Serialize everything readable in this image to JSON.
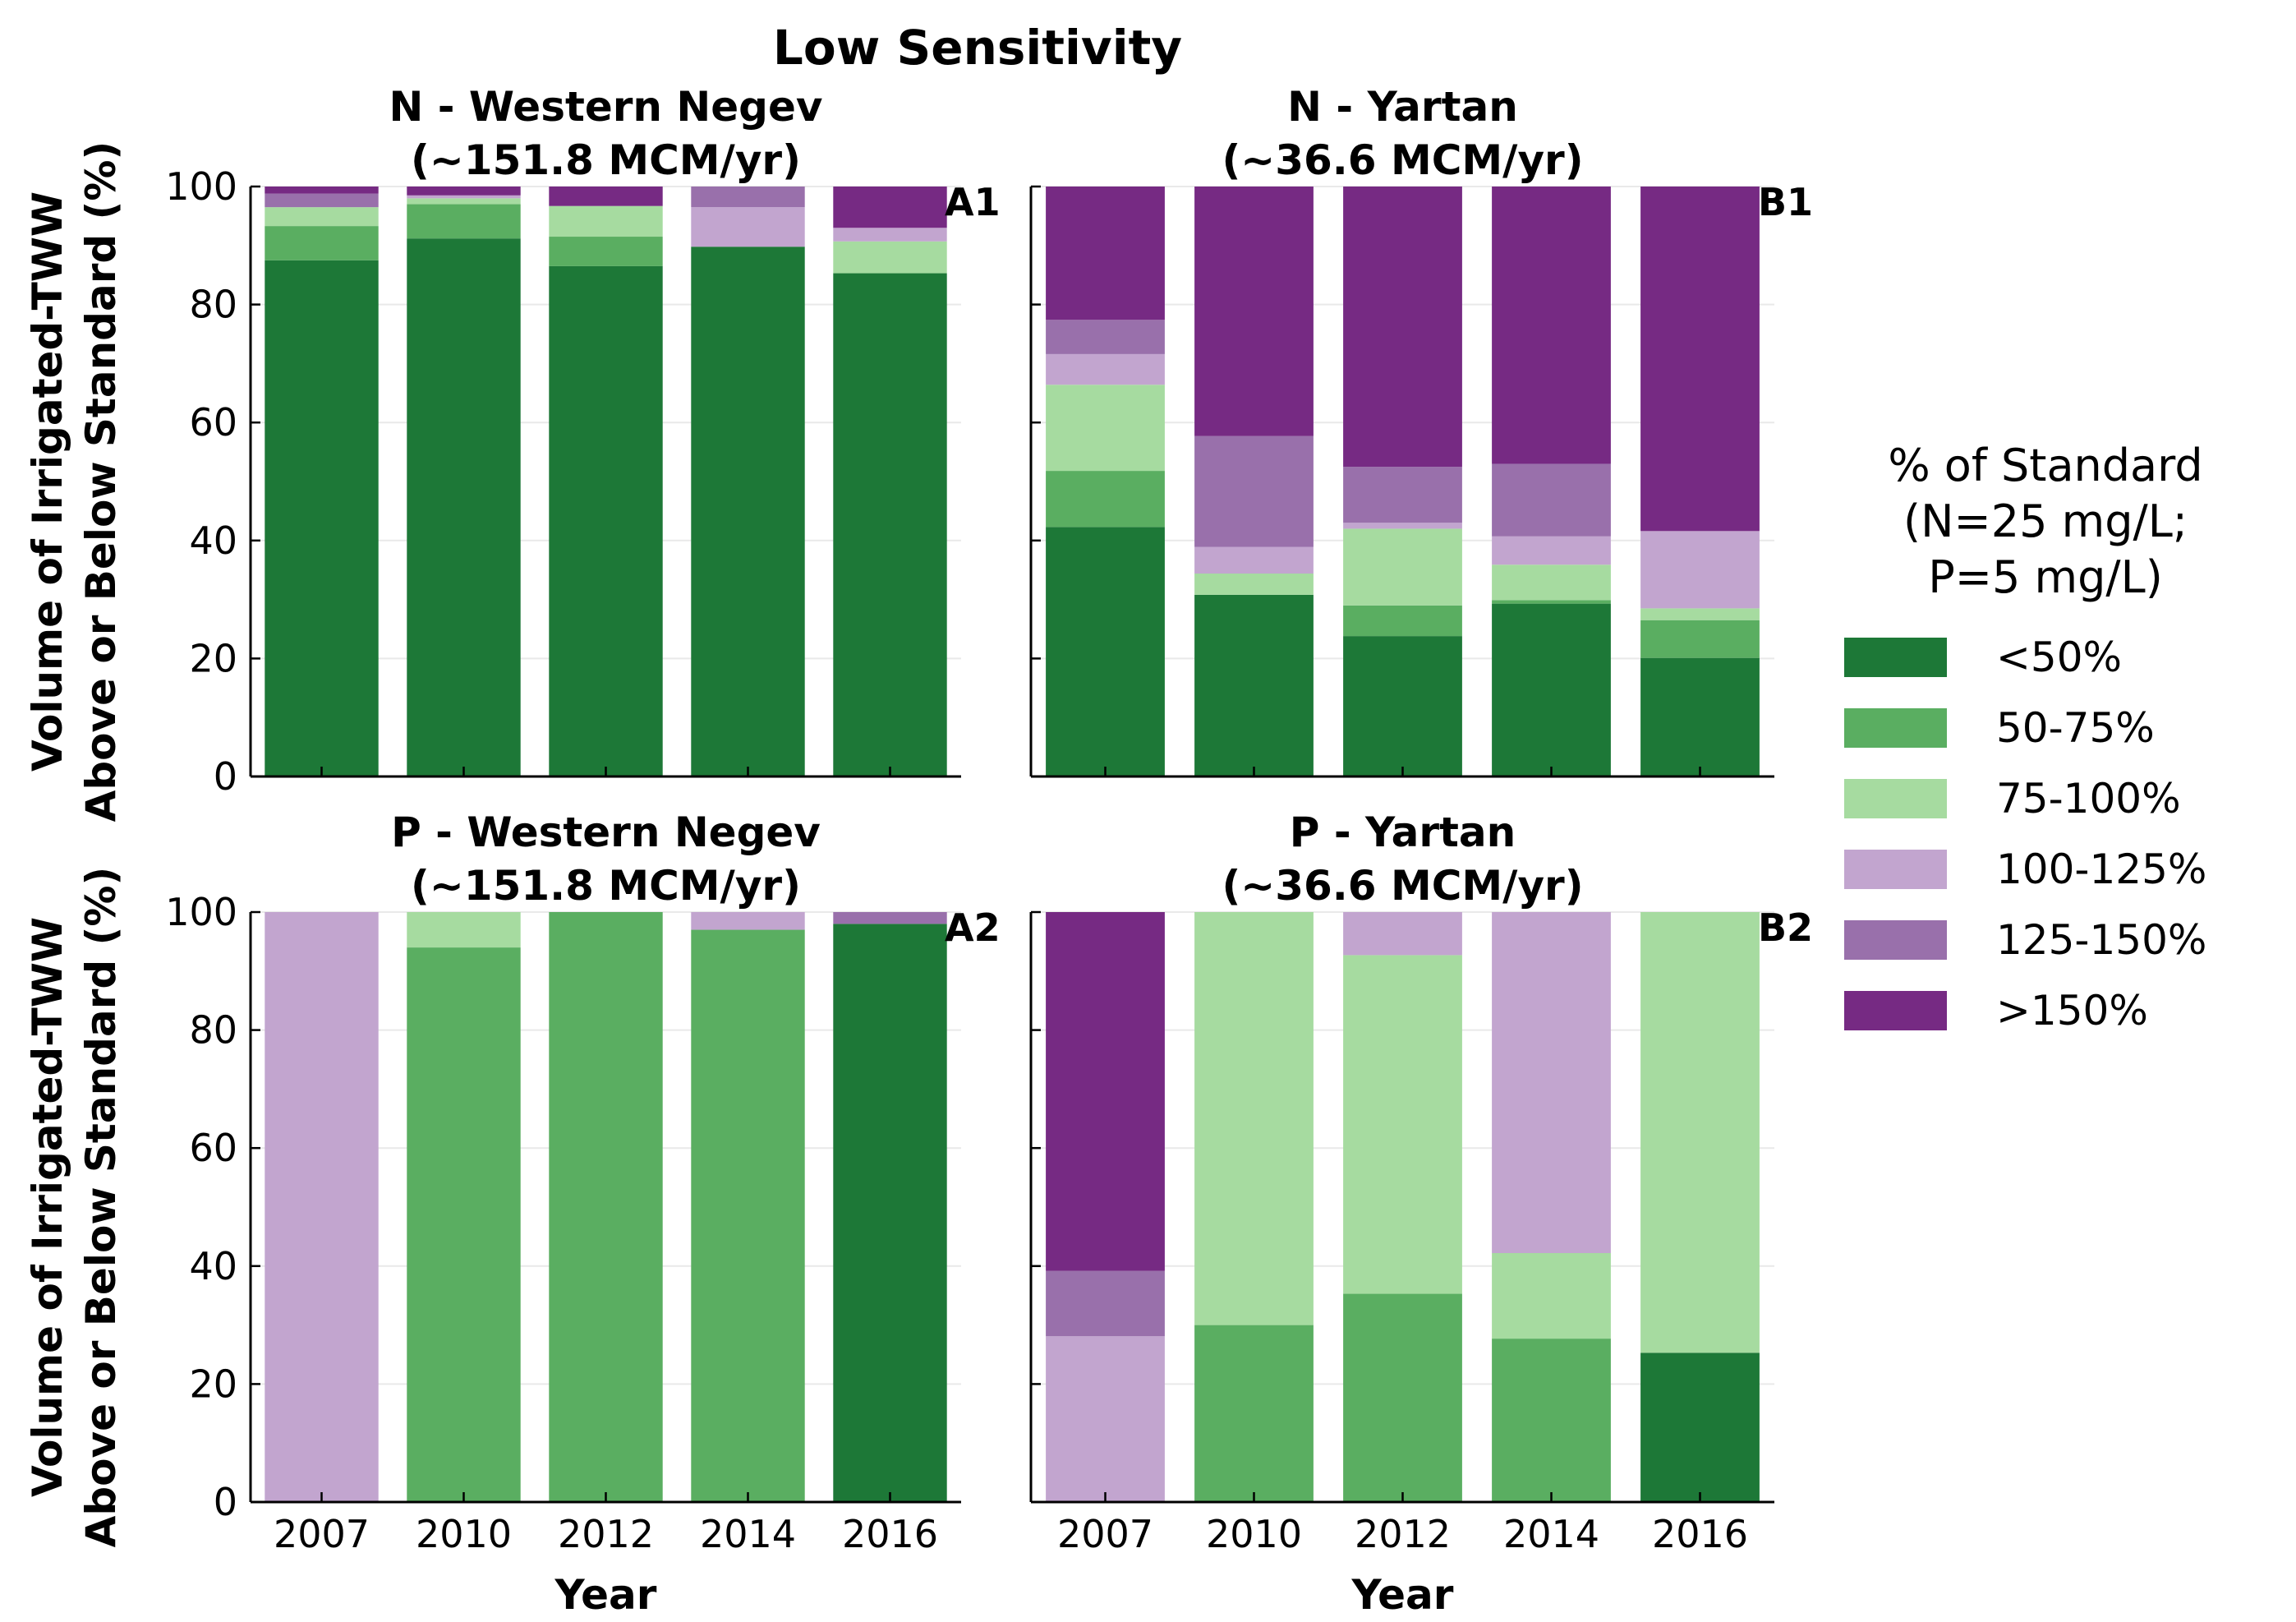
{
  "figure": {
    "suptitle": "Low Sensitivity"
  },
  "legend": {
    "title_lines": [
      "% of Standard",
      "(N=25 mg/L;",
      "P=5 mg/L)"
    ],
    "entries": [
      {
        "label": "<50%",
        "color": "#1d7837"
      },
      {
        "label": "50-75%",
        "color": "#5aae61"
      },
      {
        "label": "75-100%",
        "color": "#a6dba0"
      },
      {
        "label": "100-125%",
        "color": "#c2a5cf"
      },
      {
        "label": "125-150%",
        "color": "#9970ab"
      },
      {
        "label": ">150%",
        "color": "#762a83"
      }
    ]
  },
  "axes_text": {
    "ylabel_lines": [
      "Volume of Irrigated-TWW",
      "Above or Below Standard (%)"
    ],
    "xlabel": "Year"
  },
  "chart_data": [
    {
      "type": "bar",
      "stacked": true,
      "panel": "A1",
      "title_lines": [
        "N - Western Negev",
        "(~151.8 MCM/yr)"
      ],
      "categories": [
        "2007",
        "2010",
        "2012",
        "2014",
        "2016"
      ],
      "ylim": [
        0,
        100
      ],
      "yticks": [
        0,
        20,
        40,
        60,
        80,
        100
      ],
      "series": [
        {
          "name": "<50%",
          "values": [
            87.5,
            91.2,
            86.5,
            89.8,
            85.3
          ]
        },
        {
          "name": "50-75%",
          "values": [
            5.8,
            5.8,
            5.0,
            0.0,
            0.0
          ]
        },
        {
          "name": "75-100%",
          "values": [
            3.2,
            1.0,
            5.2,
            0.0,
            5.4
          ]
        },
        {
          "name": "100-125%",
          "values": [
            0.0,
            0.5,
            0.0,
            6.7,
            2.3
          ]
        },
        {
          "name": "125-150%",
          "values": [
            2.3,
            0.0,
            0.0,
            3.5,
            0.0
          ]
        },
        {
          "name": ">150%",
          "values": [
            1.2,
            1.5,
            3.3,
            0.0,
            7.0
          ]
        }
      ]
    },
    {
      "type": "bar",
      "stacked": true,
      "panel": "B1",
      "title_lines": [
        "N - Yartan",
        "(~36.6 MCM/yr)"
      ],
      "categories": [
        "2007",
        "2010",
        "2012",
        "2014",
        "2016"
      ],
      "ylim": [
        0,
        100
      ],
      "yticks": [
        0,
        20,
        40,
        60,
        80,
        100
      ],
      "series": [
        {
          "name": "<50%",
          "values": [
            42.3,
            30.8,
            23.8,
            29.3,
            20.1
          ]
        },
        {
          "name": "50-75%",
          "values": [
            9.5,
            0.0,
            5.2,
            0.6,
            6.4
          ]
        },
        {
          "name": "75-100%",
          "values": [
            14.6,
            3.6,
            13.0,
            6.0,
            2.0
          ]
        },
        {
          "name": "100-125%",
          "values": [
            5.2,
            4.5,
            1.0,
            4.8,
            13.1
          ]
        },
        {
          "name": "125-150%",
          "values": [
            5.8,
            18.8,
            9.5,
            12.3,
            0.0
          ]
        },
        {
          "name": ">150%",
          "values": [
            22.6,
            42.3,
            47.5,
            47.0,
            58.4
          ]
        }
      ]
    },
    {
      "type": "bar",
      "stacked": true,
      "panel": "A2",
      "title_lines": [
        "P - Western Negev",
        "(~151.8 MCM/yr)"
      ],
      "categories": [
        "2007",
        "2010",
        "2012",
        "2014",
        "2016"
      ],
      "ylim": [
        0,
        100
      ],
      "yticks": [
        0,
        20,
        40,
        60,
        80,
        100
      ],
      "series": [
        {
          "name": "<50%",
          "values": [
            0.0,
            0.0,
            0.0,
            0.0,
            98.0
          ]
        },
        {
          "name": "50-75%",
          "values": [
            0.0,
            94.0,
            100.0,
            97.0,
            0.0
          ]
        },
        {
          "name": "75-100%",
          "values": [
            0.0,
            6.0,
            0.0,
            0.0,
            0.0
          ]
        },
        {
          "name": "100-125%",
          "values": [
            100.0,
            0.0,
            0.0,
            3.0,
            0.0
          ]
        },
        {
          "name": "125-150%",
          "values": [
            0.0,
            0.0,
            0.0,
            0.0,
            2.0
          ]
        },
        {
          "name": ">150%",
          "values": [
            0.0,
            0.0,
            0.0,
            0.0,
            0.0
          ]
        }
      ]
    },
    {
      "type": "bar",
      "stacked": true,
      "panel": "B2",
      "title_lines": [
        "P - Yartan",
        "(~36.6 MCM/yr)"
      ],
      "categories": [
        "2007",
        "2010",
        "2012",
        "2014",
        "2016"
      ],
      "ylim": [
        0,
        100
      ],
      "yticks": [
        0,
        20,
        40,
        60,
        80,
        100
      ],
      "series": [
        {
          "name": "<50%",
          "values": [
            0.0,
            0.0,
            0.0,
            0.0,
            25.3
          ]
        },
        {
          "name": "50-75%",
          "values": [
            0.0,
            30.0,
            35.3,
            27.7,
            0.0
          ]
        },
        {
          "name": "75-100%",
          "values": [
            0.0,
            70.0,
            57.4,
            14.5,
            74.7
          ]
        },
        {
          "name": "100-125%",
          "values": [
            28.1,
            0.0,
            7.3,
            57.8,
            0.0
          ]
        },
        {
          "name": "125-150%",
          "values": [
            11.1,
            0.0,
            0.0,
            0.0,
            0.0
          ]
        },
        {
          "name": ">150%",
          "values": [
            60.8,
            0.0,
            0.0,
            0.0,
            0.0
          ]
        }
      ]
    }
  ]
}
